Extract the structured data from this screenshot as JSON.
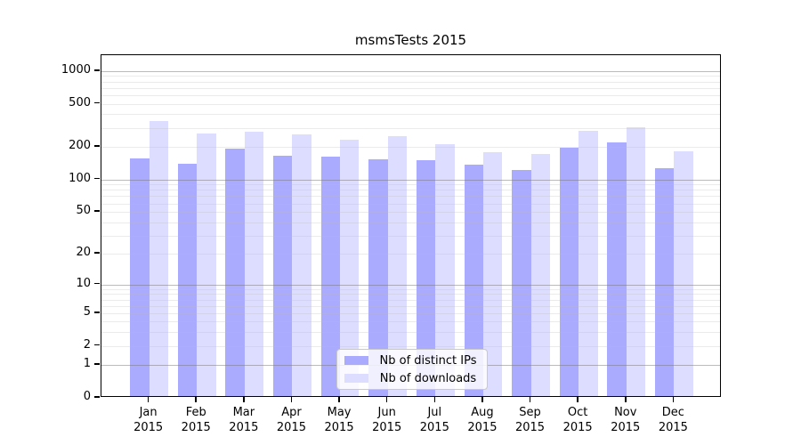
{
  "chart_data": {
    "type": "bar",
    "title": "msmsTests 2015",
    "categories": [
      "Jan",
      "Feb",
      "Mar",
      "Apr",
      "May",
      "Jun",
      "Jul",
      "Aug",
      "Sep",
      "Oct",
      "Nov",
      "Dec"
    ],
    "x_tick_second_line": "2015",
    "series": [
      {
        "name": "Nb of distinct IPs",
        "color": "#aaaaff",
        "values": [
          151,
          135,
          186,
          160,
          158,
          147,
          145,
          131,
          118,
          188,
          211,
          123
        ]
      },
      {
        "name": "Nb of downloads",
        "color": "#ddddff",
        "values": [
          333,
          255,
          264,
          250,
          226,
          240,
          204,
          172,
          167,
          272,
          291,
          175
        ]
      }
    ],
    "y_axis": {
      "scale": "log10(value+1)",
      "ticks": [
        0,
        1,
        2,
        5,
        10,
        20,
        50,
        100,
        200,
        500,
        1000
      ],
      "major_gridlines": [
        1,
        10,
        100,
        1000
      ],
      "max": 1000
    },
    "grid": {
      "major_color": "#787878",
      "minor_color": "#bebebe"
    },
    "legend": {
      "position": "inside-bottom-center"
    },
    "frame_color": "#000000",
    "background_color": "#ffffff"
  }
}
